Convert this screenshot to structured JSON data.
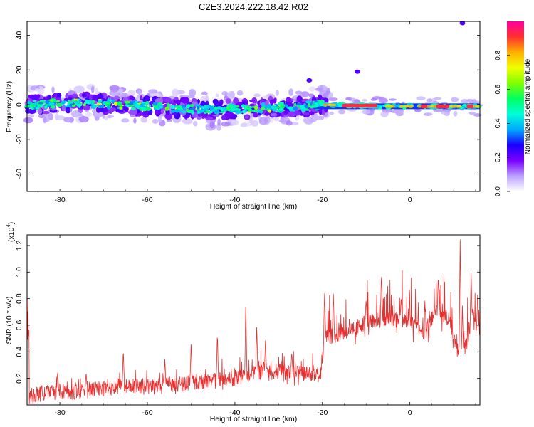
{
  "figure_title": "C2E3.2024.222.18.42.R02",
  "chart_data": [
    {
      "type": "heatmap",
      "xlabel": "Height of straight line (km)",
      "ylabel": "Frequency (Hz)",
      "xlim": [
        -87.5,
        16
      ],
      "ylim": [
        -50,
        48
      ],
      "x_ticks": [
        -80,
        -60,
        -40,
        -20,
        0
      ],
      "y_ticks": [
        -40,
        -20,
        0,
        20,
        40
      ],
      "colorbar": {
        "label": "Normalized spectral amplitude",
        "range": [
          0,
          1
        ],
        "ticks": [
          "0.0",
          "0.2",
          "0.4",
          "0.6",
          "0.8"
        ],
        "colors": [
          "#ffffff",
          "#b9a0ff",
          "#7a00ff",
          "#1a00ff",
          "#00a8ff",
          "#00ffd8",
          "#00ff60",
          "#80ff00",
          "#f0ff00",
          "#ffb000",
          "#ff3030",
          "#ff00a0"
        ]
      },
      "ridge_center_hz": [
        {
          "x": -87,
          "y": 0
        },
        {
          "x": -75,
          "y": 1
        },
        {
          "x": -65,
          "y": 0
        },
        {
          "x": -55,
          "y": -2
        },
        {
          "x": -45,
          "y": -3
        },
        {
          "x": -35,
          "y": -2
        },
        {
          "x": -25,
          "y": -1
        },
        {
          "x": -20,
          "y": 0
        },
        {
          "x": -5,
          "y": -1
        },
        {
          "x": 5,
          "y": -1
        },
        {
          "x": 15,
          "y": -1
        }
      ],
      "high_amplitude_segments_km": [
        [
          -15.5,
          -7.5
        ],
        [
          2.5,
          4
        ],
        [
          6,
          9
        ],
        [
          13,
          14.5
        ]
      ],
      "outliers": [
        {
          "x": -23,
          "y": 14
        },
        {
          "x": 12,
          "y": 47
        },
        {
          "x": -12,
          "y": 19
        }
      ]
    },
    {
      "type": "line",
      "xlabel": "Height of straight line (km)",
      "ylabel": "SNR (10 * v/v)",
      "y_multiplier": "(x10",
      "y_multiplier_exp": "4",
      "xlim": [
        -87.5,
        16
      ],
      "ylim": [
        0,
        1.28
      ],
      "x_ticks": [
        -80,
        -60,
        -40,
        -20,
        0
      ],
      "y_ticks": [
        "0.2",
        "0.4",
        "0.6",
        "0.8",
        "1.0",
        "1.2"
      ],
      "color": "#e83030",
      "series": [
        {
          "x": [
            -87,
            -85,
            -80,
            -75,
            -70,
            -65,
            -60,
            -55,
            -50,
            -45,
            -40,
            -35,
            -30,
            -25,
            -20.5,
            -19.5,
            -15,
            -10,
            -5,
            0,
            3,
            6,
            9,
            11,
            12,
            13.5,
            14.5,
            15.5
          ],
          "baseline": [
            0.05,
            0.08,
            0.1,
            0.1,
            0.12,
            0.15,
            0.14,
            0.15,
            0.17,
            0.18,
            0.2,
            0.24,
            0.25,
            0.24,
            0.22,
            0.5,
            0.55,
            0.62,
            0.65,
            0.62,
            0.55,
            0.7,
            0.65,
            0.4,
            0.35,
            0.55,
            0.7,
            0.55
          ],
          "peaks": [
            [
              -80.5,
              0.26
            ],
            [
              -74,
              0.25
            ],
            [
              -65.5,
              0.42
            ],
            [
              -56,
              0.35
            ],
            [
              -50,
              0.48
            ],
            [
              -44,
              0.55
            ],
            [
              -37.5,
              0.79
            ],
            [
              -35,
              0.6
            ],
            [
              -33,
              0.5
            ],
            [
              -27,
              0.4
            ],
            [
              -19.5,
              0.86
            ],
            [
              -17.5,
              0.85
            ],
            [
              -10,
              0.8
            ],
            [
              -6.5,
              1.0
            ],
            [
              -2,
              0.82
            ],
            [
              6.5,
              0.98
            ],
            [
              12,
              0.76
            ],
            [
              11.5,
              1.28
            ],
            [
              14,
              1.0
            ],
            [
              15.5,
              0.85
            ]
          ]
        }
      ]
    }
  ]
}
